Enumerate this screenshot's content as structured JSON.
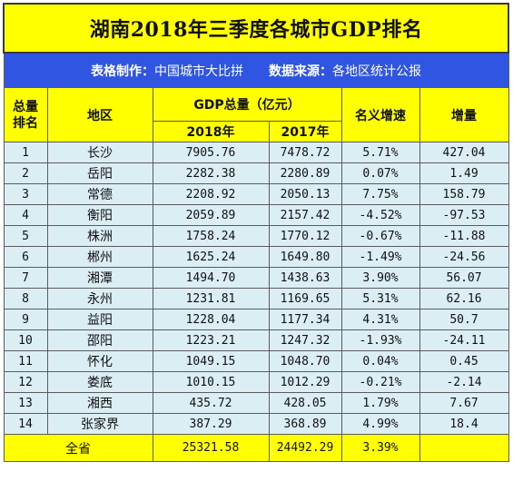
{
  "title": "湖南2018年三季度各城市GDP排名",
  "meta": {
    "maker_label": "表格制作：",
    "maker_value": "中国城市大比拼",
    "source_label": "数据来源：",
    "source_value": "各地区统计公报"
  },
  "headers": {
    "rank": "总量排名",
    "region": "地区",
    "gdp_group": "GDP总量（亿元）",
    "y2018": "2018年",
    "y2017": "2017年",
    "growth": "名义增速",
    "increase": "增量"
  },
  "rows": [
    {
      "rank": "1",
      "city": "长沙",
      "gdp2018": "7905.76",
      "gdp2017": "7478.72",
      "growth": "5.71%",
      "increase": "427.04"
    },
    {
      "rank": "2",
      "city": "岳阳",
      "gdp2018": "2282.38",
      "gdp2017": "2280.89",
      "growth": "0.07%",
      "increase": "1.49"
    },
    {
      "rank": "3",
      "city": "常德",
      "gdp2018": "2208.92",
      "gdp2017": "2050.13",
      "growth": "7.75%",
      "increase": "158.79"
    },
    {
      "rank": "4",
      "city": "衡阳",
      "gdp2018": "2059.89",
      "gdp2017": "2157.42",
      "growth": "-4.52%",
      "increase": "-97.53"
    },
    {
      "rank": "5",
      "city": "株洲",
      "gdp2018": "1758.24",
      "gdp2017": "1770.12",
      "growth": "-0.67%",
      "increase": "-11.88"
    },
    {
      "rank": "6",
      "city": "郴州",
      "gdp2018": "1625.24",
      "gdp2017": "1649.80",
      "growth": "-1.49%",
      "increase": "-24.56"
    },
    {
      "rank": "7",
      "city": "湘潭",
      "gdp2018": "1494.70",
      "gdp2017": "1438.63",
      "growth": "3.90%",
      "increase": "56.07"
    },
    {
      "rank": "8",
      "city": "永州",
      "gdp2018": "1231.81",
      "gdp2017": "1169.65",
      "growth": "5.31%",
      "increase": "62.16"
    },
    {
      "rank": "9",
      "city": "益阳",
      "gdp2018": "1228.04",
      "gdp2017": "1177.34",
      "growth": "4.31%",
      "increase": "50.7"
    },
    {
      "rank": "10",
      "city": "邵阳",
      "gdp2018": "1223.21",
      "gdp2017": "1247.32",
      "growth": "-1.93%",
      "increase": "-24.11"
    },
    {
      "rank": "11",
      "city": "怀化",
      "gdp2018": "1049.15",
      "gdp2017": "1048.70",
      "growth": "0.04%",
      "increase": "0.45"
    },
    {
      "rank": "12",
      "city": "娄底",
      "gdp2018": "1010.15",
      "gdp2017": "1012.29",
      "growth": "-0.21%",
      "increase": "-2.14"
    },
    {
      "rank": "13",
      "city": "湘西",
      "gdp2018": "435.72",
      "gdp2017": "428.05",
      "growth": "1.79%",
      "increase": "7.67"
    },
    {
      "rank": "14",
      "city": "张家界",
      "gdp2018": "387.29",
      "gdp2017": "368.89",
      "growth": "4.99%",
      "increase": "18.4"
    }
  ],
  "total": {
    "label": "全省",
    "gdp2018": "25321.58",
    "gdp2017": "24492.29",
    "growth": "3.39%",
    "increase": ""
  },
  "colors": {
    "title_bg": "#ffff00",
    "meta_bg": "#2f55e2",
    "row_bg": "#daeef3",
    "border": "#5b5b5b"
  }
}
